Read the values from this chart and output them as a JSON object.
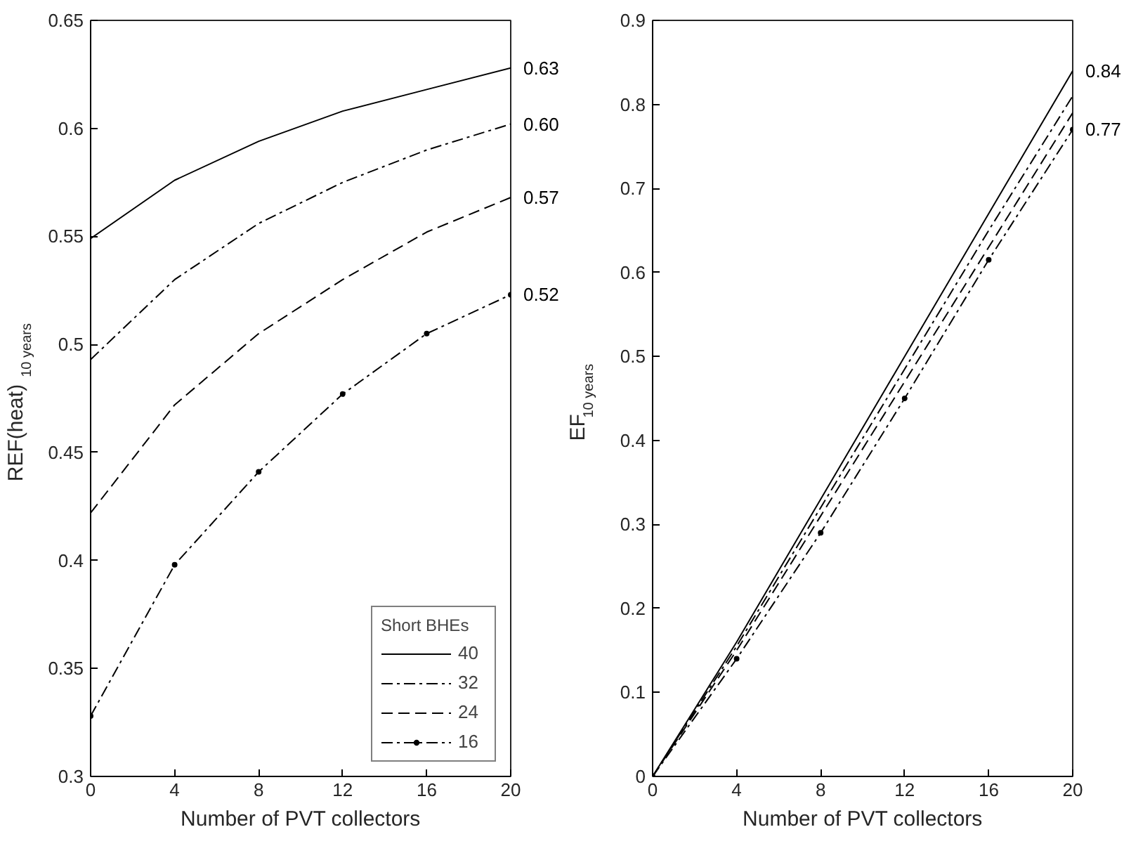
{
  "chart_data": [
    {
      "type": "line",
      "xlabel": "Number of PVT collectors",
      "ylabel": "REF(heat)$_{10 years}$",
      "x": [
        0,
        4,
        8,
        12,
        16,
        20
      ],
      "xlim": [
        0,
        20
      ],
      "xticks": [
        0,
        4,
        8,
        12,
        16,
        20
      ],
      "ylim": [
        0.3,
        0.65
      ],
      "yticks": [
        0.3,
        0.35,
        0.4,
        0.45,
        0.5,
        0.55,
        0.6,
        0.65
      ],
      "grid": false,
      "legend": "bottom right",
      "legend_title": "Short BHEs",
      "series": [
        {
          "name": "40",
          "color": "#000000",
          "line_style": "solid",
          "values": [
            0.549,
            0.576,
            0.594,
            0.608,
            0.618,
            0.628
          ],
          "value_labels": [
            null,
            null,
            null,
            null,
            null,
            "0.63"
          ]
        },
        {
          "name": "32",
          "color": "#000000",
          "line_style": "dashdot",
          "values": [
            0.493,
            0.53,
            0.556,
            0.575,
            0.59,
            0.602
          ],
          "value_labels": [
            null,
            null,
            null,
            null,
            null,
            "0.60"
          ]
        },
        {
          "name": "24",
          "color": "#000000",
          "line_style": "dashed",
          "values": [
            0.422,
            0.472,
            0.505,
            0.53,
            0.552,
            0.568
          ],
          "value_labels": [
            null,
            null,
            null,
            null,
            null,
            "0.57"
          ]
        },
        {
          "name": "16",
          "color": "#000000",
          "line_style": "dashdot",
          "marker": "circle",
          "values": [
            0.328,
            0.398,
            0.441,
            0.477,
            0.505,
            0.523
          ],
          "value_labels": [
            null,
            null,
            null,
            null,
            null,
            "0.52"
          ]
        }
      ]
    },
    {
      "type": "line",
      "xlabel": "Number of PVT collectors",
      "ylabel": "EF$_{10 years}$",
      "x": [
        0,
        4,
        8,
        12,
        16,
        20
      ],
      "xlim": [
        0,
        20
      ],
      "xticks": [
        0,
        4,
        8,
        12,
        16,
        20
      ],
      "ylim": [
        0,
        0.9
      ],
      "yticks": [
        0,
        0.1,
        0.2,
        0.3,
        0.4,
        0.5,
        0.6,
        0.7,
        0.8,
        0.9
      ],
      "grid": false,
      "legend": false,
      "series": [
        {
          "color": "#000000",
          "line_style": "solid",
          "values": [
            0,
            0.16,
            0.33,
            0.5,
            0.67,
            0.84
          ],
          "value_labels": [
            null,
            null,
            null,
            null,
            null,
            "0.84"
          ]
        },
        {
          "color": "#000000",
          "line_style": "dashdot",
          "values": [
            0,
            0.155,
            0.32,
            0.485,
            0.65,
            0.81
          ]
        },
        {
          "color": "#000000",
          "line_style": "dashed",
          "values": [
            0,
            0.15,
            0.31,
            0.47,
            0.63,
            0.79
          ]
        },
        {
          "color": "#000000",
          "line_style": "dashdot",
          "marker": "circle",
          "values": [
            0,
            0.14,
            0.29,
            0.45,
            0.615,
            0.77
          ],
          "value_labels": [
            null,
            null,
            null,
            null,
            null,
            "0.77"
          ]
        }
      ]
    }
  ]
}
